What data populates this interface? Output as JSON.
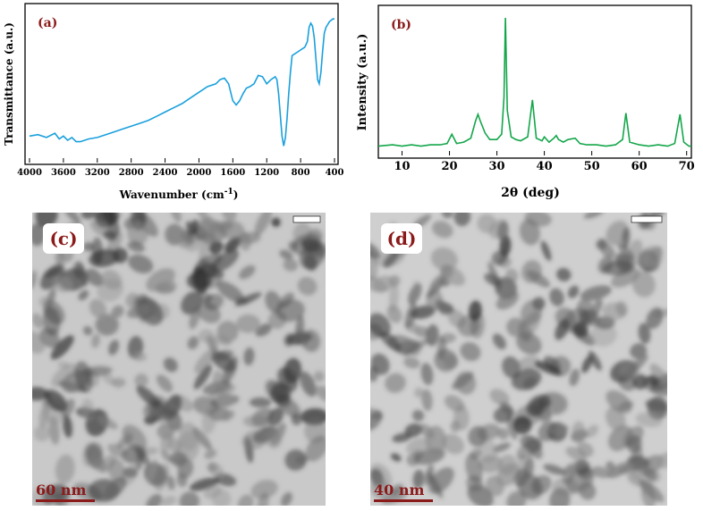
{
  "colors": {
    "ftir_line": "#1aa0dc",
    "xrd_line": "#13a64a",
    "panel_label": "#8b1a1a"
  },
  "chart_data": [
    {
      "type": "line",
      "panel_label": "(a)",
      "title": "",
      "xlabel": "Wavenumber (cm-1)",
      "ylabel": "Transmittance (a.u.)",
      "x_reversed": true,
      "xlim": [
        4000,
        400
      ],
      "ylim": [
        0,
        100
      ],
      "xticks": [
        "4000",
        "3600",
        "3200",
        "2800",
        "2400",
        "2000",
        "1600",
        "1200",
        "800",
        "400"
      ],
      "grid": false,
      "series": [
        {
          "x": [
            4000,
            3900,
            3800,
            3700,
            3650,
            3600,
            3550,
            3500,
            3450,
            3400,
            3300,
            3200,
            3100,
            3000,
            2900,
            2800,
            2700,
            2600,
            2500,
            2400,
            2300,
            2200,
            2100,
            2000,
            1900,
            1800,
            1750,
            1700,
            1650,
            1600,
            1560,
            1520,
            1480,
            1440,
            1400,
            1350,
            1300,
            1250,
            1200,
            1150,
            1100,
            1080,
            1060,
            1040,
            1020,
            1000,
            980,
            960,
            940,
            920,
            900,
            850,
            800,
            750,
            720,
            700,
            680,
            660,
            640,
            620,
            600,
            580,
            560,
            540,
            520,
            500,
            480,
            460,
            440,
            420,
            400
          ],
          "y": [
            15,
            16,
            14,
            17,
            13,
            15,
            12,
            14,
            11,
            11,
            13,
            14,
            16,
            18,
            20,
            22,
            24,
            26,
            29,
            32,
            35,
            38,
            42,
            46,
            50,
            52,
            55,
            56,
            52,
            40,
            37,
            40,
            45,
            49,
            50,
            52,
            58,
            57,
            52,
            55,
            57,
            55,
            45,
            30,
            15,
            8,
            14,
            28,
            45,
            60,
            72,
            74,
            76,
            78,
            82,
            92,
            95,
            93,
            85,
            70,
            55,
            52,
            60,
            75,
            88,
            92,
            94,
            96,
            97,
            98,
            98
          ]
        }
      ]
    },
    {
      "type": "line",
      "panel_label": "(b)",
      "title": "",
      "xlabel": "2θ (deg)",
      "ylabel": "Intensity (a.u.)",
      "xlim": [
        5,
        71
      ],
      "ylim": [
        0,
        100
      ],
      "xticks": [
        "10",
        "20",
        "30",
        "40",
        "50",
        "60",
        "70"
      ],
      "grid": false,
      "series": [
        {
          "x": [
            5,
            8,
            10,
            12,
            14,
            16,
            18,
            19.5,
            20.5,
            21.5,
            23,
            24.5,
            25.5,
            26,
            26.5,
            27.5,
            28.5,
            30,
            31,
            31.5,
            31.8,
            32.2,
            33,
            34,
            35,
            36.5,
            37.5,
            38.3,
            39.5,
            40,
            41,
            42,
            42.5,
            43,
            44,
            45,
            46.5,
            47.5,
            49,
            51,
            53,
            55,
            56.5,
            57.2,
            58,
            60,
            62,
            64,
            66,
            67.5,
            68.6,
            69.4,
            70.5,
            71
          ],
          "y": [
            3,
            4,
            3,
            4,
            3,
            4,
            4,
            5,
            12,
            5,
            6,
            9,
            22,
            27,
            22,
            13,
            8,
            8,
            12,
            40,
            100,
            30,
            10,
            8,
            7,
            10,
            38,
            9,
            7,
            10,
            6,
            9,
            11,
            8,
            6,
            8,
            9,
            5,
            4,
            4,
            3,
            4,
            8,
            28,
            6,
            4,
            3,
            4,
            3,
            5,
            27,
            6,
            3,
            3
          ]
        }
      ]
    }
  ],
  "tem": {
    "c": {
      "label": "(c)",
      "scale": "60 nm"
    },
    "d": {
      "label": "(d)",
      "scale": "40 nm"
    }
  }
}
